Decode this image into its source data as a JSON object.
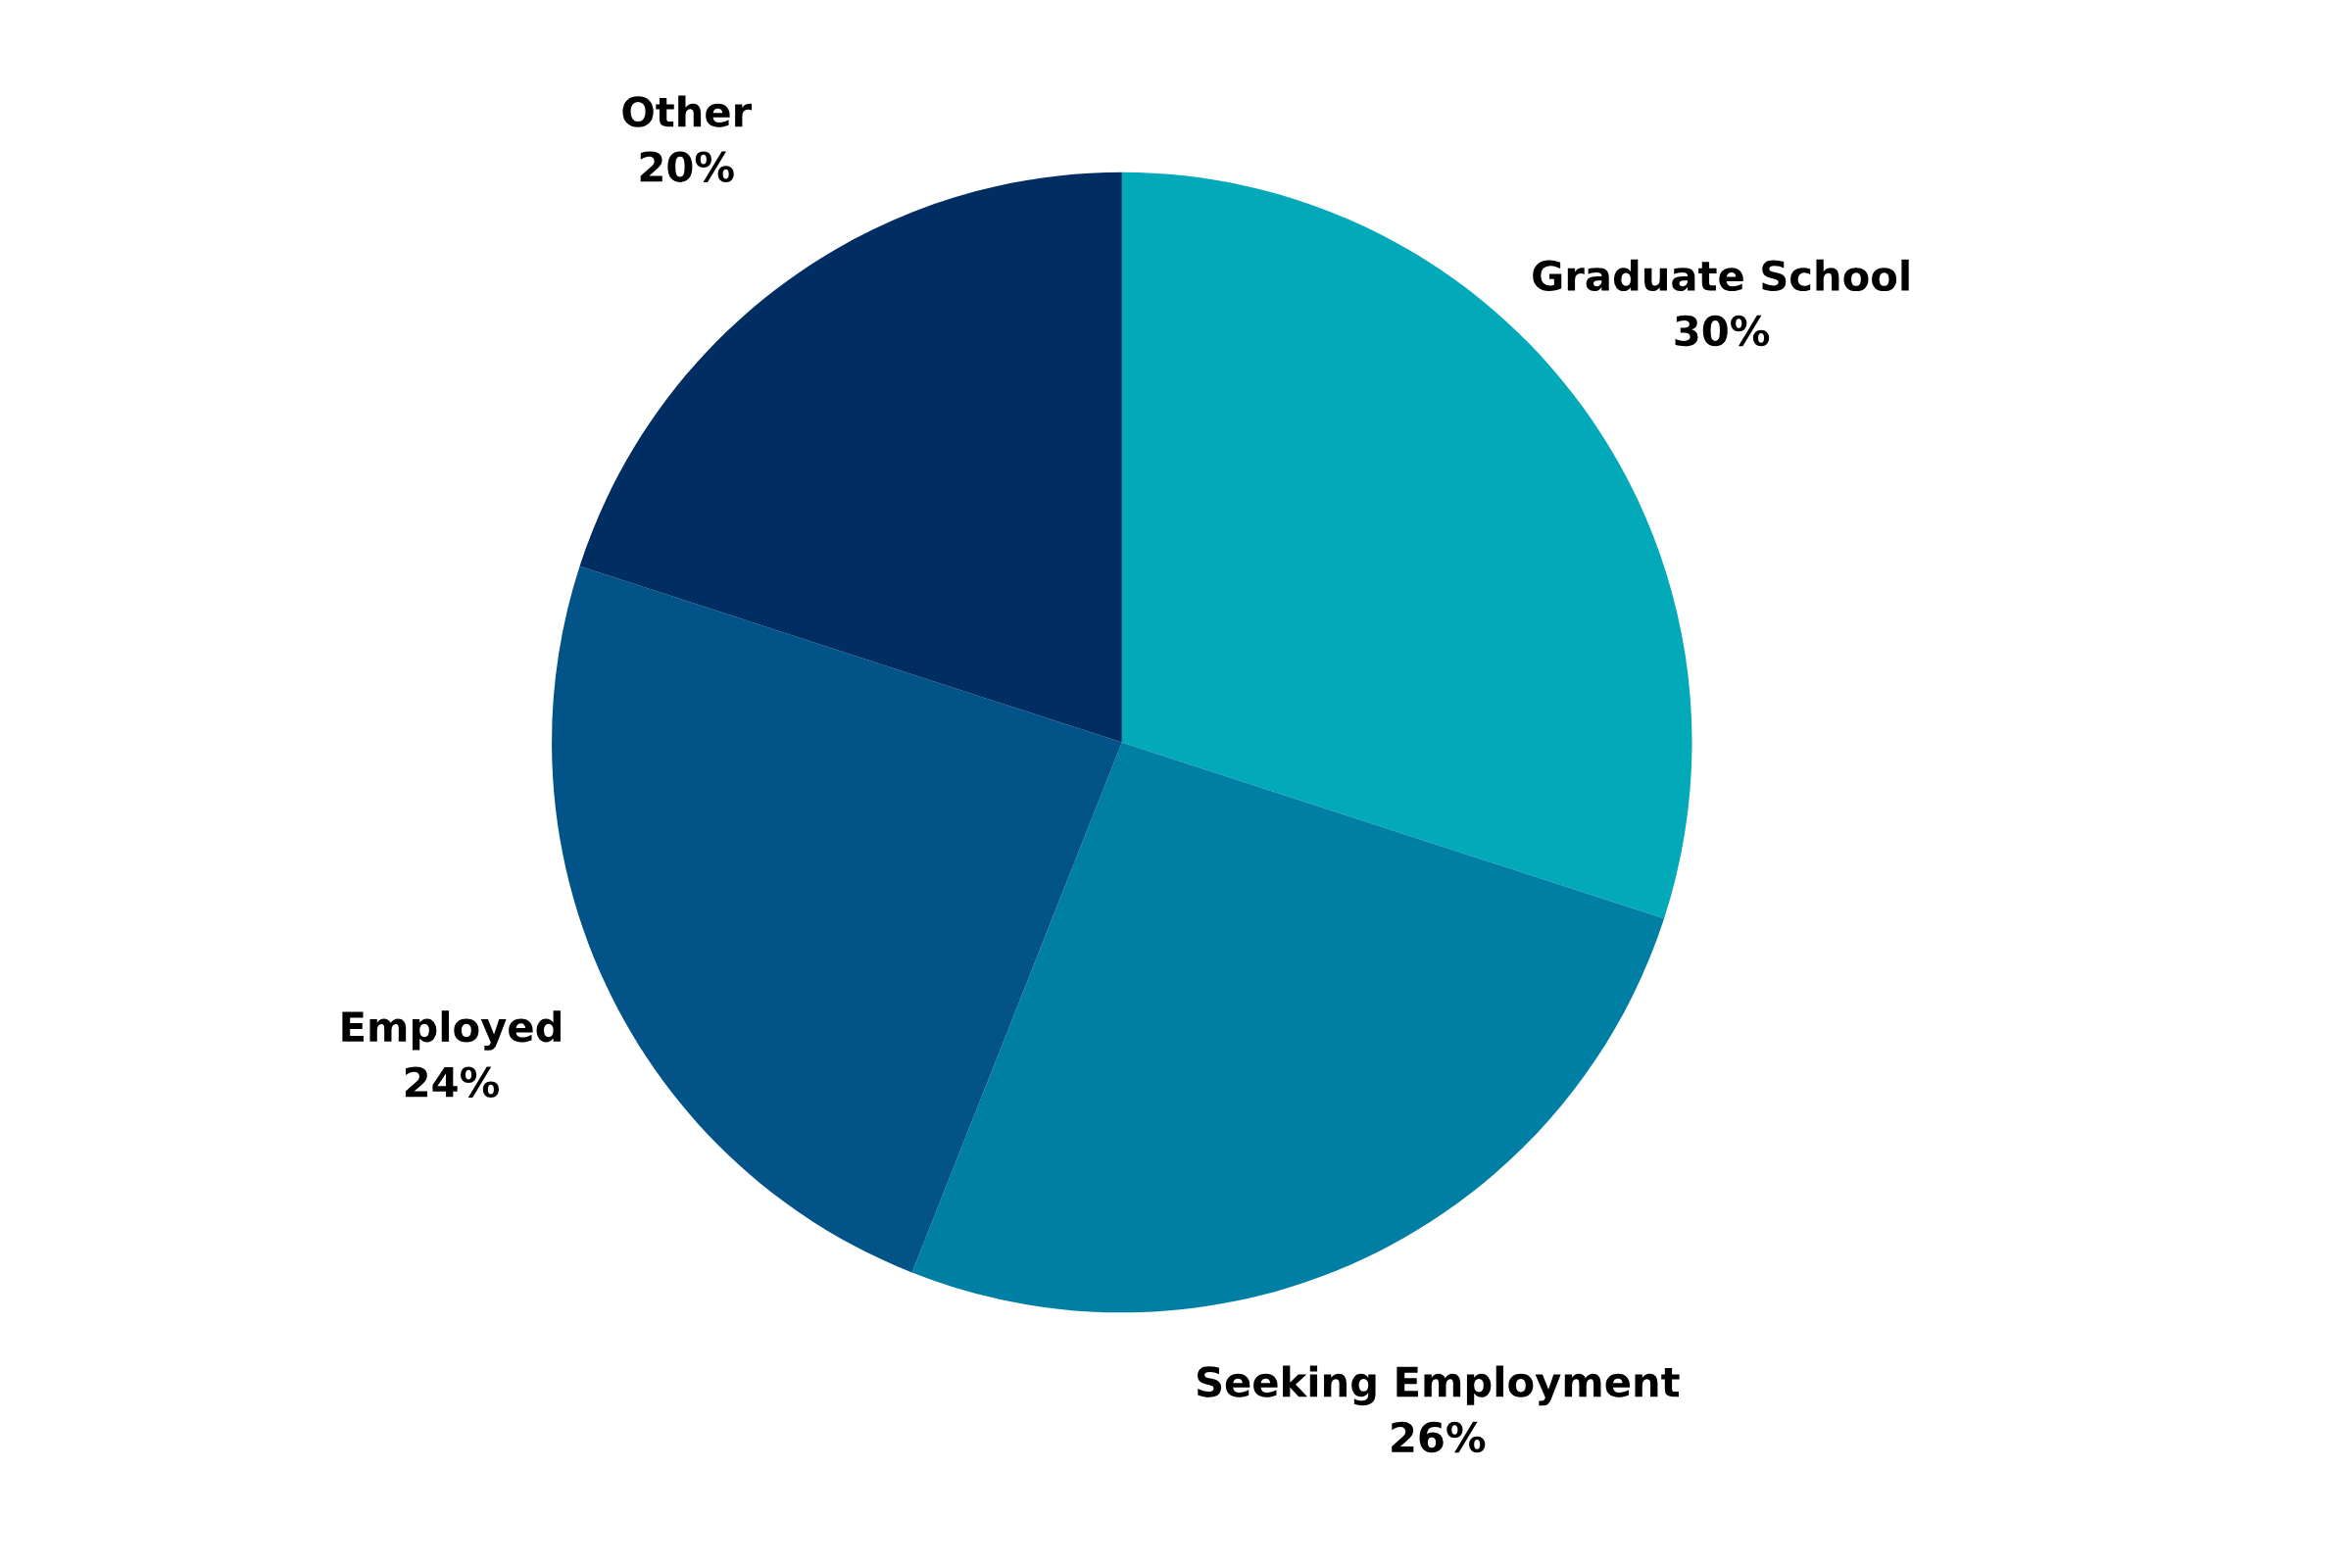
{
  "chart_data": {
    "type": "pie",
    "categories": [
      "Graduate School",
      "Seeking Employment",
      "Employed",
      "Other"
    ],
    "values": [
      30,
      26,
      24,
      20
    ],
    "value_labels": [
      "30%",
      "26%",
      "24%",
      "20%"
    ],
    "colors": [
      "#02a9b9",
      "#007fa5",
      "#025488",
      "#002d62"
    ],
    "legend": false
  }
}
